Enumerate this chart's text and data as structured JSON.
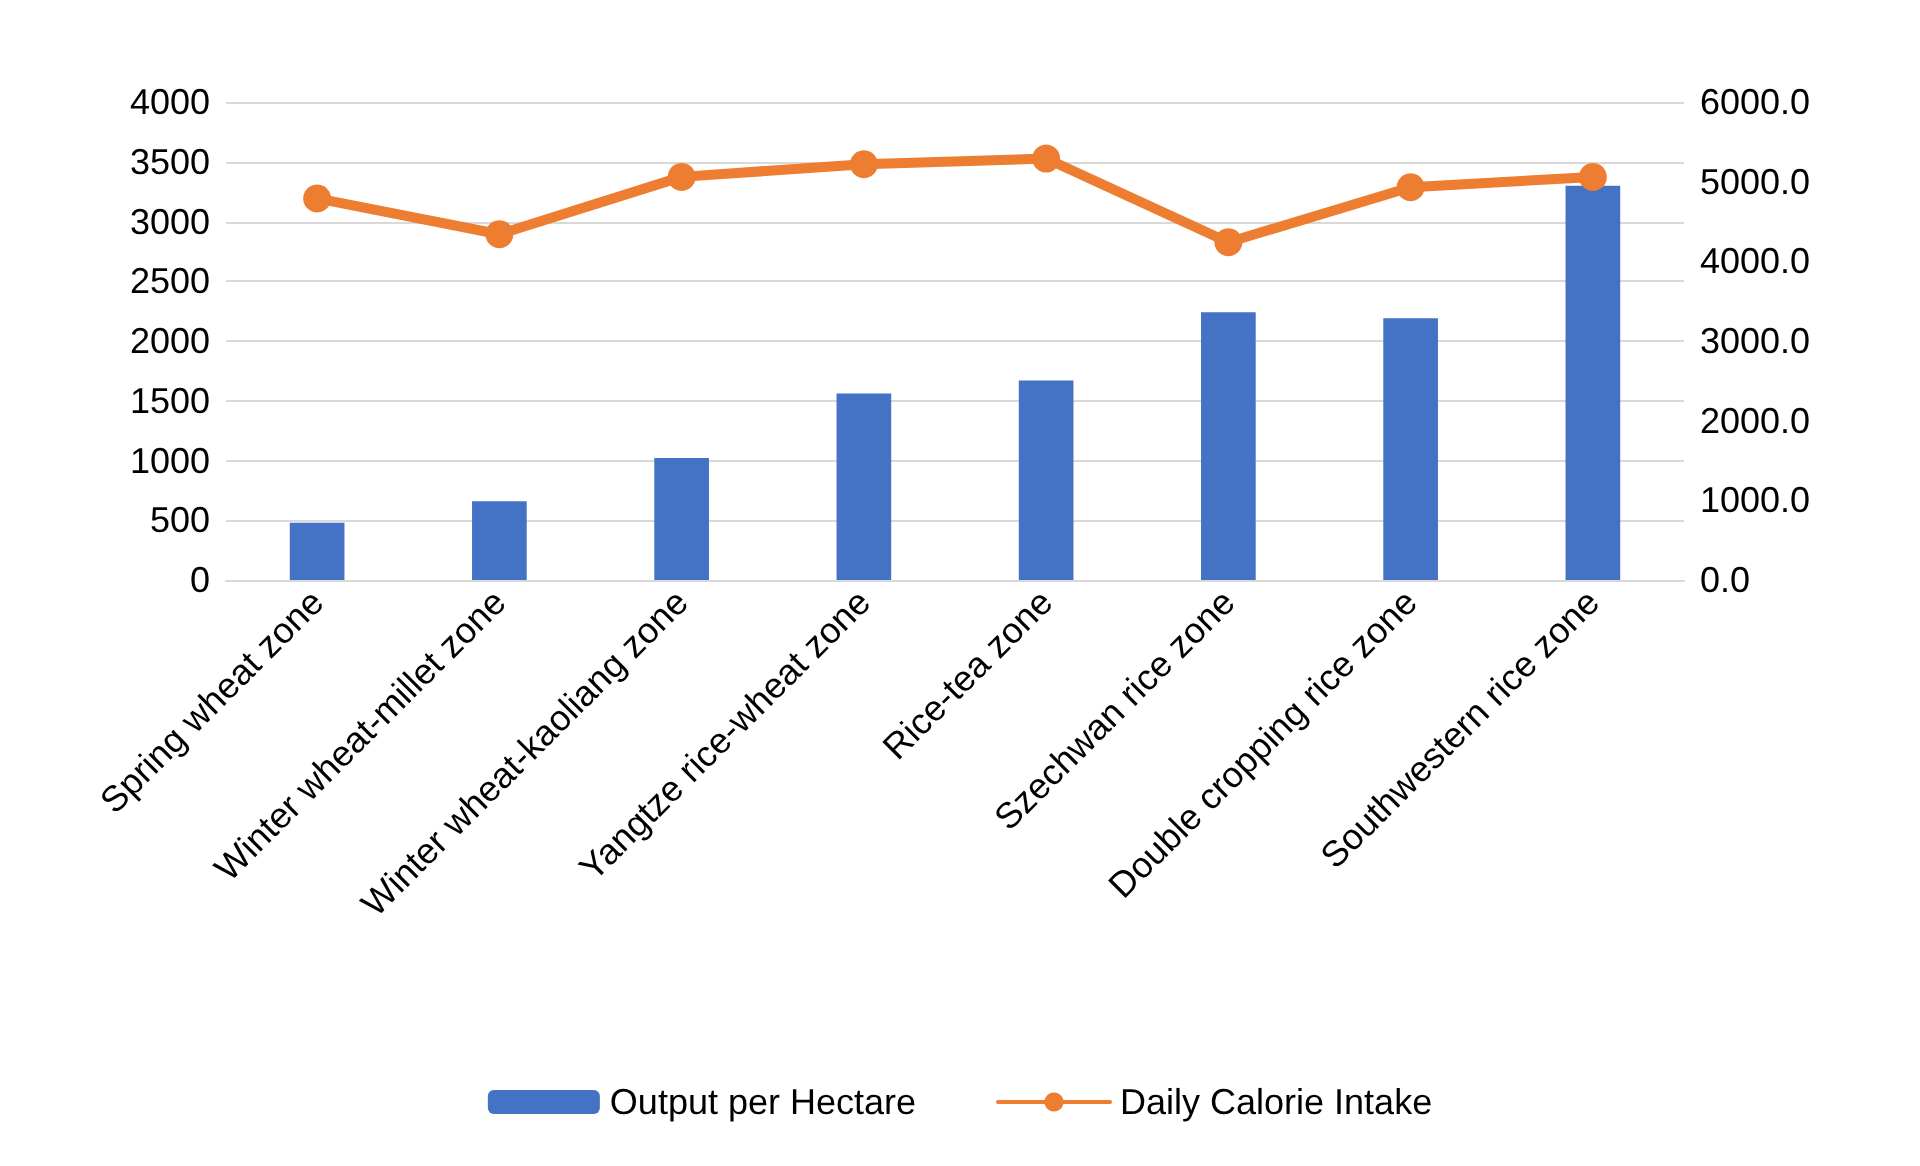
{
  "chart_data": {
    "type": "bar",
    "categories": [
      "Spring wheat zone",
      "Winter wheat-millet zone",
      "Winter wheat-kaoliang zone",
      "Yangtze rice-wheat zone",
      "Rice-tea zone",
      "Szechwan rice zone",
      "Double cropping rice zone",
      "Southwestern rice zone"
    ],
    "series": [
      {
        "name": "Output per Hectare",
        "color": "#4472c4",
        "values": [
          480,
          660,
          1020,
          1560,
          1670,
          2240,
          2190,
          3300
        ]
      },
      {
        "name": "Daily Calorie Intake",
        "type": "line",
        "axis": "y2",
        "color": "#ed7d31",
        "values": [
          4790,
          4340,
          5060,
          5220,
          5290,
          4240,
          4930,
          5060
        ]
      }
    ],
    "ylim": [
      0,
      4000
    ],
    "yticks": [
      0,
      500,
      1000,
      1500,
      2000,
      2500,
      3000,
      3500,
      4000
    ],
    "y2lim": [
      0,
      6000
    ],
    "y2ticks": [
      {
        "value": 0,
        "label": "0.0"
      },
      {
        "value": 1000,
        "label": "1000.0"
      },
      {
        "value": 2000,
        "label": "2000.0"
      },
      {
        "value": 3000,
        "label": "3000.0"
      },
      {
        "value": 4000,
        "label": "4000.0"
      },
      {
        "value": 5000,
        "label": "5000.0"
      },
      {
        "value": 6000,
        "label": "6000.0"
      }
    ],
    "grid": "y",
    "legend": "bottom",
    "marker": "circle",
    "line_style": "solid"
  }
}
